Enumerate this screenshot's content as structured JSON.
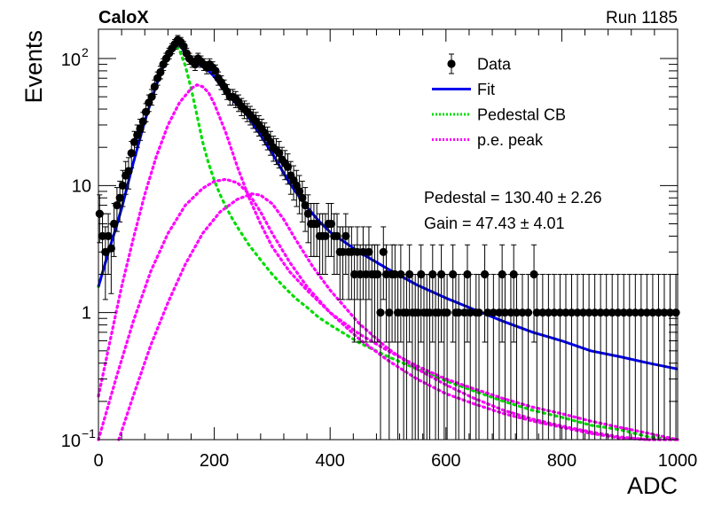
{
  "chart_data": {
    "type": "scatter",
    "title_left": "CaloX",
    "title_right": "Run 1185",
    "xlabel": "ADC",
    "ylabel": "Events",
    "xlim": [
      0,
      1000
    ],
    "ylim": [
      0.1,
      170
    ],
    "yscale": "log",
    "grid": false,
    "legend_position": "top-right",
    "x_ticks": [
      {
        "v": 0,
        "label": "0"
      },
      {
        "v": 200,
        "label": "200"
      },
      {
        "v": 400,
        "label": "400"
      },
      {
        "v": 600,
        "label": "600"
      },
      {
        "v": 800,
        "label": "800"
      },
      {
        "v": 1000,
        "label": "1000"
      }
    ],
    "y_ticks": [
      {
        "v": 0.1,
        "base": "10",
        "exp": "−1",
        "plain": ""
      },
      {
        "v": 1,
        "base": "",
        "exp": "",
        "plain": "1"
      },
      {
        "v": 10,
        "base": "",
        "exp": "",
        "plain": "10"
      },
      {
        "v": 100,
        "base": "10",
        "exp": "2",
        "plain": ""
      }
    ],
    "legend": [
      {
        "label": "Data",
        "style": "marker",
        "color": "#000000"
      },
      {
        "label": "Fit",
        "style": "solid",
        "color": "#0000ee"
      },
      {
        "label": "Pedestal CB",
        "style": "dotted",
        "color": "#00dd00"
      },
      {
        "label": "p.e. peak",
        "style": "dotted",
        "color": "#ff00ff"
      }
    ],
    "annotations": [
      "Pedestal = 130.40 ± 2.26",
      "Gain = 47.43 ± 4.01"
    ],
    "fit_params": {
      "pedestal": 130.4,
      "pedestal_err": 2.26,
      "gain": 47.43,
      "gain_err": 4.01
    },
    "data_points": [
      [
        2,
        6
      ],
      [
        7,
        4
      ],
      [
        12,
        3
      ],
      [
        17,
        4
      ],
      [
        22,
        3.2
      ],
      [
        27,
        5
      ],
      [
        32,
        7
      ],
      [
        37,
        8
      ],
      [
        42,
        10
      ],
      [
        47,
        12
      ],
      [
        52,
        13
      ],
      [
        57,
        18
      ],
      [
        62,
        22
      ],
      [
        67,
        25
      ],
      [
        72,
        28
      ],
      [
        77,
        32
      ],
      [
        82,
        38
      ],
      [
        87,
        45
      ],
      [
        92,
        50
      ],
      [
        97,
        60
      ],
      [
        102,
        70
      ],
      [
        107,
        78
      ],
      [
        112,
        90
      ],
      [
        117,
        100
      ],
      [
        122,
        110
      ],
      [
        127,
        120
      ],
      [
        132,
        130
      ],
      [
        137,
        140
      ],
      [
        142,
        135
      ],
      [
        147,
        125
      ],
      [
        152,
        110
      ],
      [
        157,
        100
      ],
      [
        162,
        95
      ],
      [
        167,
        90
      ],
      [
        172,
        100
      ],
      [
        177,
        95
      ],
      [
        182,
        90
      ],
      [
        187,
        85
      ],
      [
        192,
        90
      ],
      [
        197,
        85
      ],
      [
        202,
        80
      ],
      [
        207,
        70
      ],
      [
        212,
        65
      ],
      [
        217,
        60
      ],
      [
        222,
        55
      ],
      [
        227,
        50
      ],
      [
        232,
        50
      ],
      [
        237,
        48
      ],
      [
        242,
        45
      ],
      [
        247,
        42
      ],
      [
        252,
        40
      ],
      [
        257,
        38
      ],
      [
        262,
        36
      ],
      [
        267,
        34
      ],
      [
        272,
        32
      ],
      [
        277,
        30
      ],
      [
        282,
        28
      ],
      [
        287,
        26
      ],
      [
        292,
        24
      ],
      [
        297,
        22
      ],
      [
        302,
        20
      ],
      [
        307,
        19
      ],
      [
        312,
        18
      ],
      [
        317,
        16
      ],
      [
        322,
        15
      ],
      [
        327,
        14
      ],
      [
        332,
        12
      ],
      [
        337,
        11
      ],
      [
        342,
        10
      ],
      [
        347,
        9
      ],
      [
        352,
        8
      ],
      [
        357,
        7
      ],
      [
        362,
        6
      ],
      [
        367,
        5
      ],
      [
        372,
        5
      ],
      [
        377,
        5
      ],
      [
        382,
        4
      ],
      [
        387,
        4
      ],
      [
        392,
        4
      ],
      [
        397,
        5
      ],
      [
        402,
        5
      ],
      [
        407,
        4
      ],
      [
        412,
        4
      ],
      [
        417,
        3
      ],
      [
        422,
        3
      ],
      [
        427,
        4
      ],
      [
        432,
        3
      ],
      [
        437,
        3
      ],
      [
        442,
        2
      ],
      [
        447,
        3
      ],
      [
        452,
        2
      ],
      [
        457,
        3
      ],
      [
        462,
        2
      ],
      [
        467,
        3
      ],
      [
        472,
        2
      ],
      [
        477,
        2
      ],
      [
        482,
        2
      ],
      [
        487,
        1
      ],
      [
        492,
        3
      ],
      [
        497,
        2
      ],
      [
        502,
        1
      ],
      [
        507,
        2
      ],
      [
        512,
        2
      ],
      [
        517,
        1
      ],
      [
        522,
        2
      ],
      [
        527,
        1
      ],
      [
        532,
        1
      ],
      [
        537,
        2
      ],
      [
        542,
        1
      ],
      [
        547,
        1
      ],
      [
        552,
        1
      ],
      [
        557,
        2
      ],
      [
        562,
        1
      ],
      [
        567,
        1
      ],
      [
        572,
        1
      ],
      [
        577,
        2
      ],
      [
        582,
        1
      ],
      [
        587,
        1
      ],
      [
        592,
        2
      ],
      [
        597,
        1
      ],
      [
        602,
        1
      ],
      [
        612,
        2
      ],
      [
        617,
        1
      ],
      [
        622,
        1
      ],
      [
        632,
        1
      ],
      [
        637,
        2
      ],
      [
        642,
        1
      ],
      [
        652,
        1
      ],
      [
        657,
        1
      ],
      [
        667,
        2
      ],
      [
        672,
        1
      ],
      [
        682,
        1
      ],
      [
        692,
        1
      ],
      [
        697,
        2
      ],
      [
        702,
        1
      ],
      [
        712,
        1
      ],
      [
        717,
        2
      ],
      [
        722,
        1
      ],
      [
        732,
        1
      ],
      [
        742,
        1
      ],
      [
        752,
        2
      ],
      [
        757,
        1
      ],
      [
        767,
        1
      ],
      [
        777,
        1
      ],
      [
        787,
        1
      ],
      [
        797,
        1
      ],
      [
        807,
        1
      ],
      [
        817,
        1
      ],
      [
        827,
        1
      ],
      [
        837,
        1
      ],
      [
        847,
        1
      ],
      [
        857,
        1
      ],
      [
        867,
        1
      ],
      [
        877,
        1
      ],
      [
        887,
        1
      ],
      [
        897,
        1
      ],
      [
        907,
        1
      ],
      [
        917,
        1
      ],
      [
        927,
        1
      ],
      [
        937,
        1
      ],
      [
        947,
        1
      ],
      [
        957,
        1
      ],
      [
        967,
        1
      ],
      [
        977,
        1
      ],
      [
        987,
        1
      ],
      [
        997,
        1
      ]
    ],
    "fit_curve": [
      [
        0,
        1.6
      ],
      [
        10,
        2.3
      ],
      [
        20,
        3.3
      ],
      [
        30,
        4.6
      ],
      [
        40,
        6.6
      ],
      [
        50,
        10
      ],
      [
        60,
        15
      ],
      [
        70,
        22
      ],
      [
        80,
        32
      ],
      [
        90,
        45
      ],
      [
        100,
        62
      ],
      [
        110,
        82
      ],
      [
        120,
        105
      ],
      [
        130,
        125
      ],
      [
        135,
        132
      ],
      [
        140,
        128
      ],
      [
        150,
        112
      ],
      [
        160,
        98
      ],
      [
        170,
        92
      ],
      [
        180,
        86
      ],
      [
        190,
        80
      ],
      [
        200,
        72
      ],
      [
        210,
        62
      ],
      [
        220,
        54
      ],
      [
        230,
        48
      ],
      [
        240,
        43
      ],
      [
        250,
        39
      ],
      [
        260,
        34
      ],
      [
        270,
        29
      ],
      [
        280,
        25
      ],
      [
        290,
        21
      ],
      [
        300,
        18
      ],
      [
        310,
        15
      ],
      [
        320,
        12.5
      ],
      [
        330,
        10.5
      ],
      [
        340,
        9
      ],
      [
        350,
        7.8
      ],
      [
        360,
        6.8
      ],
      [
        380,
        5.3
      ],
      [
        400,
        4.3
      ],
      [
        450,
        3.0
      ],
      [
        500,
        2.2
      ],
      [
        550,
        1.65
      ],
      [
        600,
        1.3
      ],
      [
        650,
        1.05
      ],
      [
        700,
        0.85
      ],
      [
        750,
        0.7
      ],
      [
        800,
        0.6
      ],
      [
        850,
        0.5
      ],
      [
        900,
        0.45
      ],
      [
        950,
        0.4
      ],
      [
        1000,
        0.36
      ]
    ],
    "pedestal_curve": [
      [
        0,
        1.6
      ],
      [
        10,
        2.3
      ],
      [
        20,
        3.3
      ],
      [
        30,
        4.6
      ],
      [
        40,
        6.6
      ],
      [
        50,
        10
      ],
      [
        60,
        15
      ],
      [
        70,
        22
      ],
      [
        80,
        32
      ],
      [
        90,
        45
      ],
      [
        100,
        62
      ],
      [
        110,
        82
      ],
      [
        120,
        105
      ],
      [
        130,
        120
      ],
      [
        135,
        124
      ],
      [
        140,
        116
      ],
      [
        150,
        88
      ],
      [
        160,
        58
      ],
      [
        170,
        36
      ],
      [
        180,
        22
      ],
      [
        190,
        15
      ],
      [
        200,
        11
      ],
      [
        210,
        8.5
      ],
      [
        220,
        6.8
      ],
      [
        230,
        5.6
      ],
      [
        240,
        4.7
      ],
      [
        250,
        4.0
      ],
      [
        260,
        3.4
      ],
      [
        280,
        2.6
      ],
      [
        300,
        2.0
      ],
      [
        320,
        1.6
      ],
      [
        340,
        1.3
      ],
      [
        360,
        1.1
      ],
      [
        380,
        0.92
      ],
      [
        400,
        0.8
      ],
      [
        450,
        0.58
      ],
      [
        500,
        0.45
      ],
      [
        550,
        0.36
      ],
      [
        600,
        0.29
      ],
      [
        650,
        0.24
      ],
      [
        700,
        0.2
      ],
      [
        750,
        0.17
      ],
      [
        800,
        0.15
      ],
      [
        850,
        0.13
      ],
      [
        900,
        0.12
      ],
      [
        950,
        0.105
      ],
      [
        1000,
        0.095
      ]
    ],
    "pe_peaks": [
      [
        [
          0,
          0.22
        ],
        [
          20,
          0.6
        ],
        [
          40,
          1.6
        ],
        [
          60,
          3.8
        ],
        [
          80,
          8.5
        ],
        [
          100,
          17
        ],
        [
          120,
          30
        ],
        [
          140,
          45
        ],
        [
          160,
          58
        ],
        [
          170,
          62
        ],
        [
          180,
          60
        ],
        [
          190,
          54
        ],
        [
          200,
          44
        ],
        [
          220,
          26
        ],
        [
          240,
          14
        ],
        [
          260,
          8
        ],
        [
          280,
          5
        ],
        [
          300,
          3.3
        ],
        [
          330,
          2.1
        ],
        [
          360,
          1.5
        ],
        [
          400,
          1.0
        ],
        [
          450,
          0.68
        ],
        [
          500,
          0.5
        ],
        [
          550,
          0.38
        ],
        [
          600,
          0.3
        ],
        [
          650,
          0.25
        ],
        [
          700,
          0.21
        ],
        [
          750,
          0.18
        ],
        [
          800,
          0.16
        ],
        [
          850,
          0.14
        ],
        [
          900,
          0.125
        ],
        [
          950,
          0.112
        ],
        [
          1000,
          0.1
        ]
      ],
      [
        [
          0,
          0.1
        ],
        [
          30,
          0.3
        ],
        [
          60,
          0.85
        ],
        [
          90,
          2.1
        ],
        [
          120,
          4.2
        ],
        [
          150,
          7
        ],
        [
          180,
          9.5
        ],
        [
          200,
          10.8
        ],
        [
          220,
          11.2
        ],
        [
          240,
          10.5
        ],
        [
          260,
          8.6
        ],
        [
          280,
          6.2
        ],
        [
          300,
          4.2
        ],
        [
          330,
          2.5
        ],
        [
          360,
          1.6
        ],
        [
          400,
          1.0
        ],
        [
          450,
          0.62
        ],
        [
          500,
          0.42
        ],
        [
          550,
          0.3
        ],
        [
          600,
          0.23
        ],
        [
          650,
          0.19
        ],
        [
          700,
          0.16
        ],
        [
          750,
          0.14
        ],
        [
          800,
          0.125
        ],
        [
          850,
          0.112
        ],
        [
          900,
          0.103
        ],
        [
          950,
          0.096
        ]
      ],
      [
        [
          35,
          0.1
        ],
        [
          60,
          0.22
        ],
        [
          90,
          0.55
        ],
        [
          120,
          1.2
        ],
        [
          150,
          2.4
        ],
        [
          180,
          4.2
        ],
        [
          210,
          6.2
        ],
        [
          240,
          7.8
        ],
        [
          265,
          8.6
        ],
        [
          280,
          8.4
        ],
        [
          300,
          7.2
        ],
        [
          320,
          5.4
        ],
        [
          340,
          3.8
        ],
        [
          370,
          2.3
        ],
        [
          400,
          1.5
        ],
        [
          450,
          0.82
        ],
        [
          500,
          0.52
        ],
        [
          550,
          0.36
        ],
        [
          600,
          0.27
        ],
        [
          650,
          0.21
        ],
        [
          700,
          0.17
        ],
        [
          750,
          0.145
        ],
        [
          800,
          0.128
        ],
        [
          850,
          0.115
        ],
        [
          900,
          0.105
        ],
        [
          950,
          0.098
        ],
        [
          1000,
          0.09
        ]
      ]
    ]
  }
}
